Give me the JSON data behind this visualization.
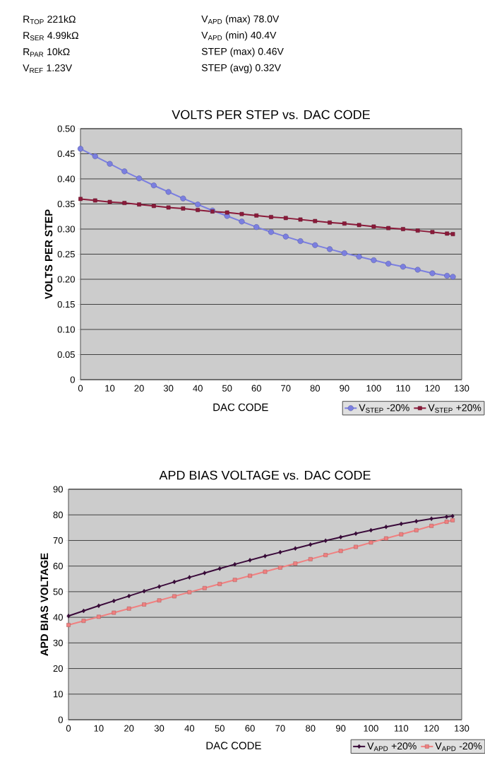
{
  "chart_data": [
    {
      "type": "line",
      "title": "VOLTS PER STEP vs. DAC CODE",
      "xlabel": "DAC CODE",
      "ylabel": "VOLTS PER STEP",
      "annotations": [
        "R$_{TOP}$ 221kΩ",
        "R$_{SER}$ 4.99kΩ",
        "R$_{PAR}$ 10kΩ",
        "V$_{REF}$ 1.23V",
        "V$_{APD}$ (max) 78.0V",
        "V$_{APD}$ (min) 40.4V",
        "STEP (max) 0.46V",
        "STEP (avg) 0.32V"
      ],
      "x": [
        0,
        5,
        10,
        15,
        20,
        25,
        30,
        35,
        40,
        45,
        50,
        55,
        60,
        65,
        70,
        75,
        80,
        85,
        90,
        95,
        100,
        105,
        110,
        115,
        120,
        125,
        127
      ],
      "series": [
        {
          "name": "V$_{STEP}$ -20%",
          "color": "#7b7fe0",
          "marker": "circle",
          "values": [
            0.46,
            0.445,
            0.43,
            0.415,
            0.401,
            0.387,
            0.374,
            0.361,
            0.349,
            0.337,
            0.326,
            0.315,
            0.304,
            0.294,
            0.285,
            0.276,
            0.268,
            0.26,
            0.252,
            0.245,
            0.238,
            0.231,
            0.225,
            0.219,
            0.212,
            0.207,
            0.205
          ]
        },
        {
          "name": "V$_{STEP}$ +20%",
          "color": "#8b1a3a",
          "marker": "square",
          "values": [
            0.36,
            0.357,
            0.354,
            0.352,
            0.349,
            0.346,
            0.343,
            0.341,
            0.338,
            0.335,
            0.333,
            0.33,
            0.327,
            0.324,
            0.322,
            0.319,
            0.316,
            0.313,
            0.311,
            0.308,
            0.305,
            0.302,
            0.3,
            0.297,
            0.294,
            0.291,
            0.29
          ]
        }
      ],
      "xlim": [
        0,
        130
      ],
      "xticks": [
        0,
        10,
        20,
        30,
        40,
        50,
        60,
        70,
        80,
        90,
        100,
        110,
        120,
        130
      ],
      "ylim": [
        0,
        0.5
      ],
      "yticks": [
        0,
        0.05,
        {
          "value": 0.1,
          "label": "0.10"
        },
        0.15,
        {
          "value": 0.2,
          "label": "0.20"
        },
        0.25,
        {
          "value": 0.3,
          "label": "0.30"
        },
        0.35,
        {
          "value": 0.4,
          "label": "0.40"
        },
        0.45,
        {
          "value": 0.5,
          "label": "0.50"
        }
      ],
      "grid": "y",
      "legend": "bottom right"
    },
    {
      "type": "line",
      "title": "APD BIAS VOLTAGE vs. DAC CODE",
      "xlabel": "DAC CODE",
      "ylabel": "APD BIAS VOLTAGE",
      "x": [
        0,
        5,
        10,
        15,
        20,
        25,
        30,
        35,
        40,
        45,
        50,
        55,
        60,
        65,
        70,
        75,
        80,
        85,
        90,
        95,
        100,
        105,
        110,
        115,
        120,
        125,
        127
      ],
      "series": [
        {
          "name": "V$_{APD}$ +20%",
          "color": "#3a0a3a",
          "marker": "diamond",
          "values": [
            40.5,
            42.5,
            44.5,
            46.4,
            48.3,
            50.2,
            52.0,
            53.8,
            55.6,
            57.3,
            59.0,
            60.7,
            62.3,
            63.9,
            65.4,
            66.9,
            68.4,
            69.9,
            71.3,
            72.7,
            74.0,
            75.3,
            76.5,
            77.5,
            78.5,
            79.2,
            79.5
          ]
        },
        {
          "name": "V$_{APD}$ -20%",
          "color": "#f08080",
          "marker": "square",
          "values": [
            37.0,
            38.6,
            40.2,
            41.8,
            43.4,
            45.0,
            46.6,
            48.2,
            49.8,
            51.4,
            53.0,
            54.6,
            56.2,
            57.8,
            59.4,
            61.0,
            62.7,
            64.3,
            65.9,
            67.5,
            69.2,
            70.8,
            72.4,
            74.0,
            75.7,
            77.3,
            77.9
          ]
        }
      ],
      "xlim": [
        0,
        130
      ],
      "xticks": [
        0,
        10,
        20,
        30,
        40,
        50,
        60,
        70,
        80,
        90,
        100,
        110,
        120,
        130
      ],
      "ylim": [
        0,
        90
      ],
      "yticks": [
        0,
        10,
        20,
        30,
        40,
        50,
        60,
        70,
        80,
        90
      ],
      "grid": "y",
      "legend": "bottom right"
    }
  ]
}
